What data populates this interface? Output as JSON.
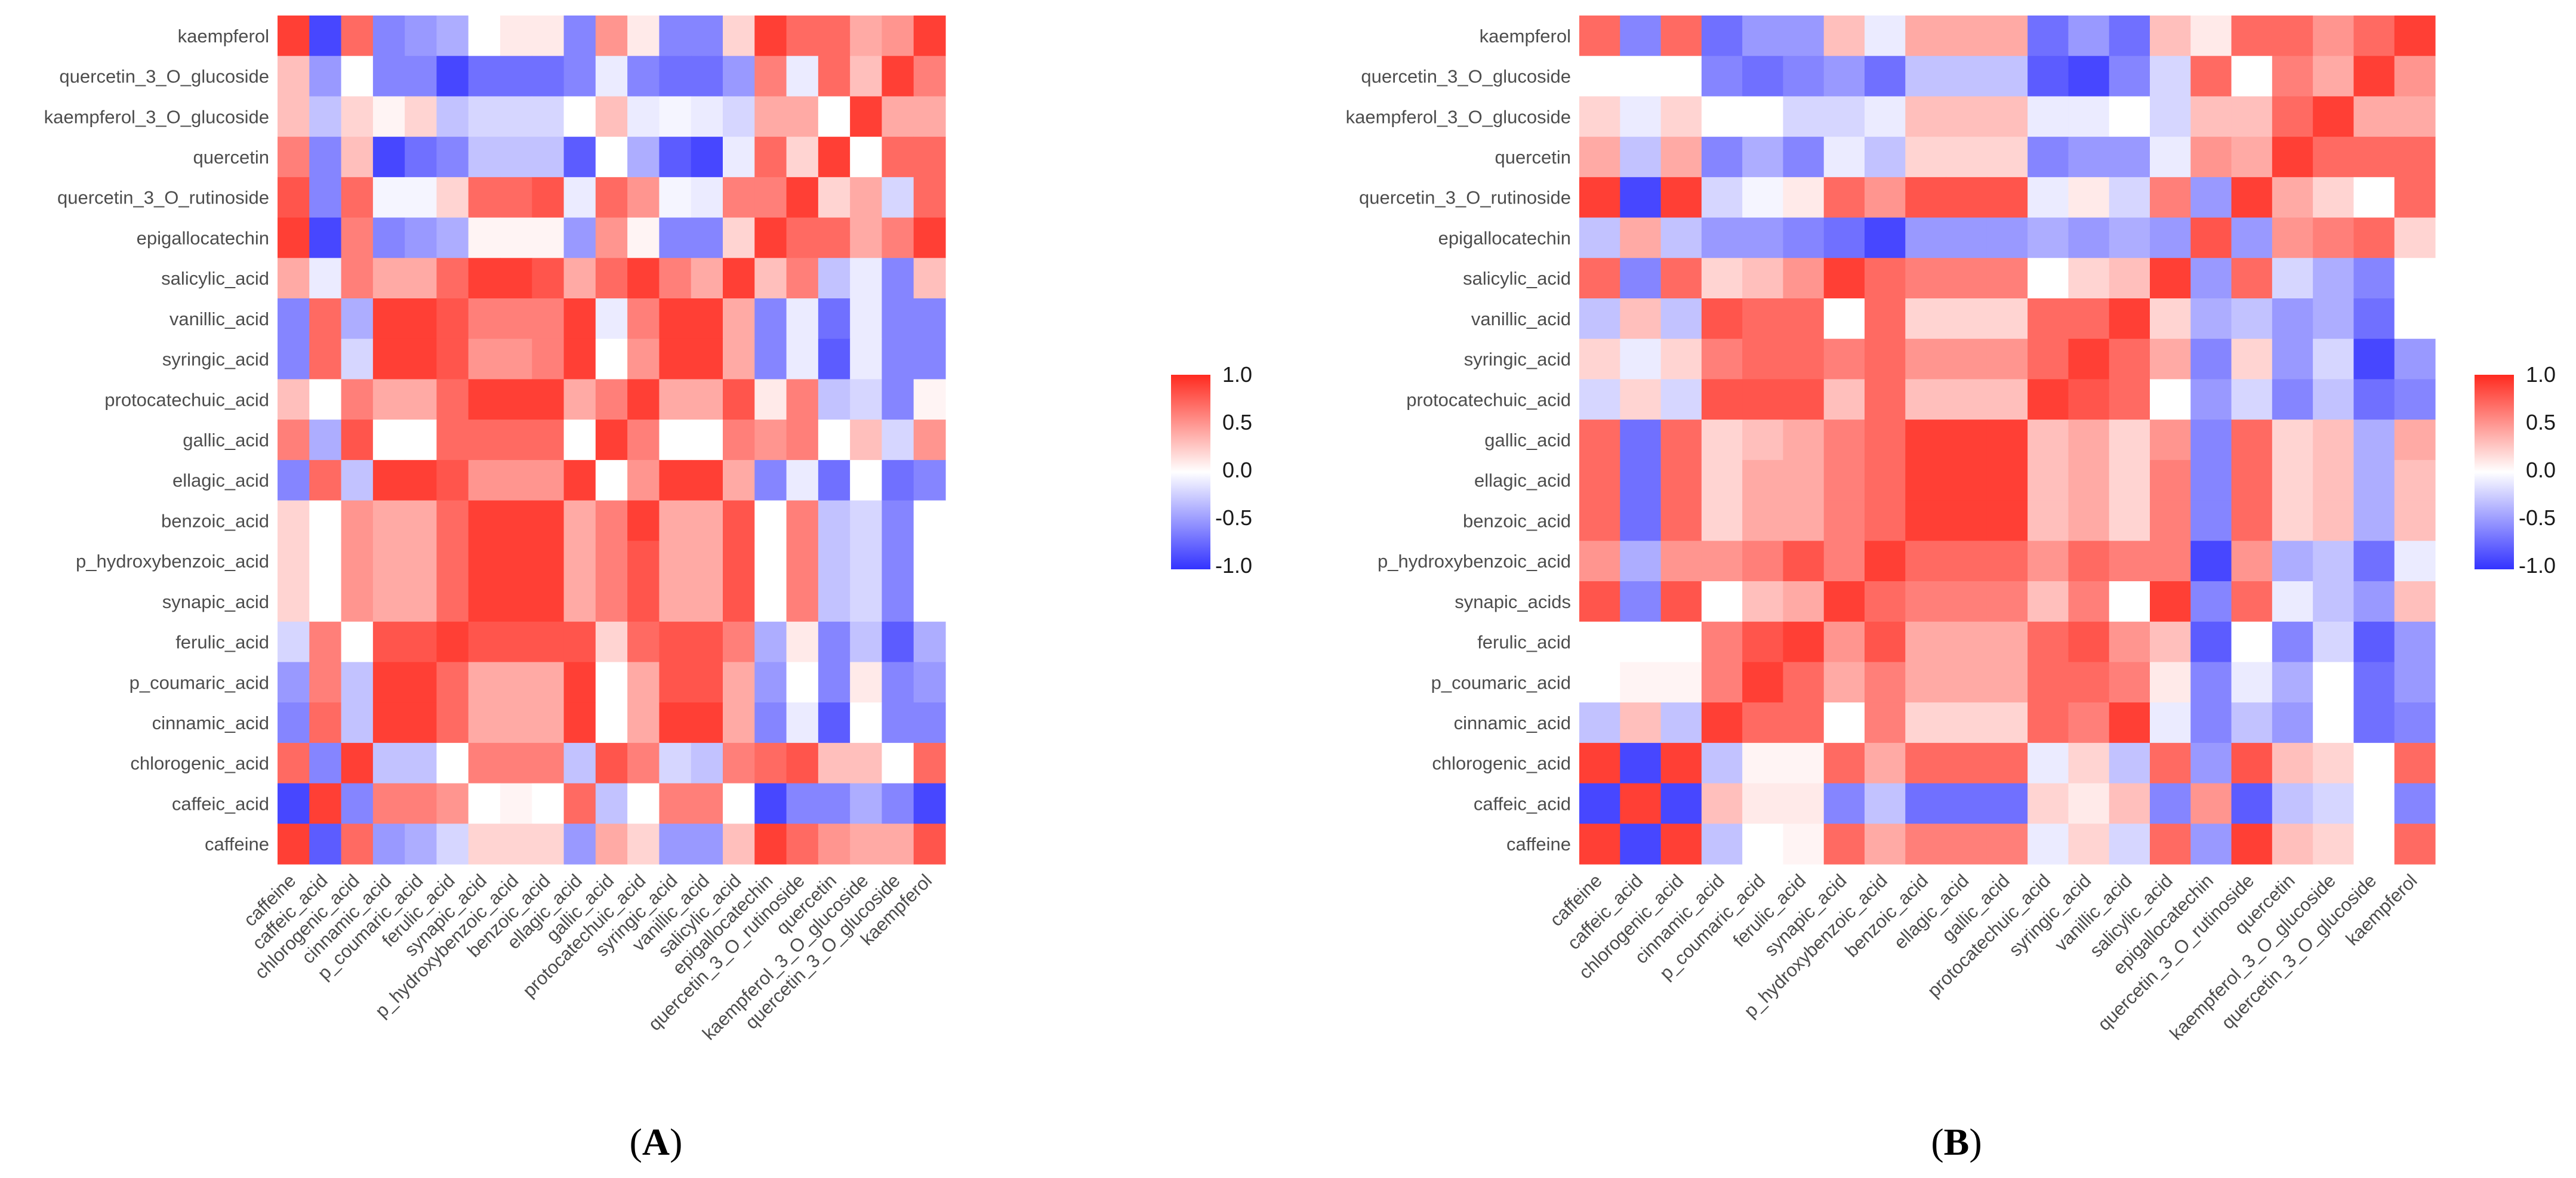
{
  "colors": {
    "low": "#3333ff",
    "mid": "#ffffff",
    "high": "#ff2a1f"
  },
  "chart_data": [
    {
      "type": "heatmap",
      "panel_label": "A",
      "panel_label_open": "(",
      "panel_label_close": ")",
      "title": "",
      "x_labels": [
        "caffeine",
        "caffeic_acid",
        "chlorogenic_acid",
        "cinnamic_acid",
        "p_coumaric_acid",
        "ferulic_acid",
        "synapic_acid",
        "p_hydroxybenzoic_acid",
        "benzoic_acid",
        "ellagic_acid",
        "gallic_acid",
        "protocatechuic_acid",
        "syringic_acid",
        "vanillic_acid",
        "salicylic_acid",
        "epigallocatechin",
        "quercetin_3_O_rutinoside",
        "quercetin",
        "kaempferol_3_O_glucoside",
        "quercetin_3_O_glucoside",
        "kaempferol"
      ],
      "y_labels": [
        "kaempferol",
        "quercetin_3_O_glucoside",
        "kaempferol_3_O_glucoside",
        "quercetin",
        "quercetin_3_O_rutinoside",
        "epigallocatechin",
        "salicylic_acid",
        "vanillic_acid",
        "syringic_acid",
        "protocatechuic_acid",
        "gallic_acid",
        "ellagic_acid",
        "benzoic_acid",
        "p_hydroxybenzoic_acid",
        "synapic_acid",
        "ferulic_acid",
        "p_coumaric_acid",
        "cinnamic_acid",
        "chlorogenic_acid",
        "caffeic_acid",
        "caffeine"
      ],
      "values": [
        [
          0.9,
          -0.9,
          0.7,
          -0.6,
          -0.5,
          -0.4,
          0.0,
          0.1,
          0.1,
          -0.6,
          0.5,
          0.1,
          -0.6,
          -0.6,
          0.2,
          0.9,
          0.7,
          0.7,
          0.4,
          0.5,
          0.9
        ],
        [
          0.3,
          -0.5,
          0.0,
          -0.6,
          -0.6,
          -0.9,
          -0.7,
          -0.7,
          -0.7,
          -0.6,
          -0.1,
          -0.6,
          -0.7,
          -0.7,
          -0.5,
          0.6,
          -0.1,
          0.7,
          0.3,
          0.9,
          0.6
        ],
        [
          0.3,
          -0.3,
          0.2,
          0.05,
          0.2,
          -0.3,
          -0.2,
          -0.2,
          -0.2,
          0.0,
          0.3,
          -0.1,
          -0.05,
          -0.1,
          -0.2,
          0.4,
          0.4,
          0.0,
          0.9,
          0.4,
          0.4
        ],
        [
          0.6,
          -0.6,
          0.3,
          -0.9,
          -0.7,
          -0.6,
          -0.3,
          -0.3,
          -0.3,
          -0.8,
          0.0,
          -0.4,
          -0.8,
          -0.9,
          -0.1,
          0.7,
          0.2,
          0.9,
          0.0,
          0.7,
          0.7
        ],
        [
          0.8,
          -0.6,
          0.7,
          -0.05,
          -0.05,
          0.2,
          0.7,
          0.7,
          0.8,
          -0.1,
          0.7,
          0.5,
          -0.05,
          -0.1,
          0.6,
          0.6,
          0.9,
          0.2,
          0.4,
          -0.2,
          0.7
        ],
        [
          0.9,
          -0.9,
          0.6,
          -0.6,
          -0.5,
          -0.4,
          0.05,
          0.05,
          0.05,
          -0.5,
          0.5,
          0.05,
          -0.6,
          -0.6,
          0.2,
          0.9,
          0.7,
          0.7,
          0.4,
          0.6,
          0.9
        ],
        [
          0.4,
          -0.1,
          0.6,
          0.4,
          0.4,
          0.7,
          0.9,
          0.9,
          0.8,
          0.4,
          0.7,
          0.9,
          0.6,
          0.4,
          0.9,
          0.3,
          0.6,
          -0.3,
          -0.1,
          -0.6,
          0.3
        ],
        [
          -0.6,
          0.7,
          -0.4,
          0.9,
          0.9,
          0.8,
          0.6,
          0.6,
          0.6,
          0.9,
          -0.1,
          0.6,
          0.9,
          0.9,
          0.4,
          -0.6,
          -0.1,
          -0.7,
          -0.1,
          -0.6,
          -0.6
        ],
        [
          -0.6,
          0.7,
          -0.2,
          0.9,
          0.9,
          0.8,
          0.5,
          0.5,
          0.6,
          0.9,
          0.0,
          0.5,
          0.9,
          0.9,
          0.4,
          -0.6,
          -0.1,
          -0.8,
          -0.1,
          -0.6,
          -0.6
        ],
        [
          0.3,
          0.0,
          0.6,
          0.4,
          0.4,
          0.7,
          0.9,
          0.9,
          0.9,
          0.4,
          0.6,
          0.9,
          0.4,
          0.4,
          0.8,
          0.1,
          0.6,
          -0.3,
          -0.2,
          -0.6,
          0.05
        ],
        [
          0.6,
          -0.4,
          0.8,
          0.0,
          0.0,
          0.7,
          0.7,
          0.7,
          0.7,
          0.0,
          0.9,
          0.6,
          0.0,
          0.0,
          0.6,
          0.5,
          0.6,
          0.0,
          0.3,
          -0.2,
          0.5
        ],
        [
          -0.6,
          0.7,
          -0.3,
          0.9,
          0.9,
          0.8,
          0.5,
          0.5,
          0.5,
          0.9,
          0.0,
          0.5,
          0.9,
          0.9,
          0.4,
          -0.6,
          -0.1,
          -0.7,
          0.0,
          -0.7,
          -0.6
        ],
        [
          0.2,
          0.0,
          0.5,
          0.4,
          0.4,
          0.7,
          0.9,
          0.9,
          0.9,
          0.4,
          0.6,
          0.9,
          0.4,
          0.4,
          0.8,
          0.0,
          0.6,
          -0.3,
          -0.2,
          -0.6,
          0.0
        ],
        [
          0.2,
          0.0,
          0.5,
          0.4,
          0.4,
          0.7,
          0.9,
          0.9,
          0.9,
          0.4,
          0.6,
          0.8,
          0.4,
          0.4,
          0.8,
          0.0,
          0.6,
          -0.3,
          -0.2,
          -0.6,
          0.0
        ],
        [
          0.2,
          0.0,
          0.5,
          0.4,
          0.4,
          0.7,
          0.9,
          0.9,
          0.9,
          0.4,
          0.6,
          0.8,
          0.4,
          0.4,
          0.8,
          0.0,
          0.6,
          -0.3,
          -0.2,
          -0.6,
          0.0
        ],
        [
          -0.2,
          0.6,
          0.0,
          0.8,
          0.8,
          0.9,
          0.8,
          0.8,
          0.8,
          0.8,
          0.2,
          0.7,
          0.8,
          0.8,
          0.6,
          -0.4,
          0.1,
          -0.6,
          -0.3,
          -0.8,
          -0.4
        ],
        [
          -0.5,
          0.6,
          -0.3,
          0.9,
          0.9,
          0.7,
          0.4,
          0.4,
          0.4,
          0.9,
          0.0,
          0.4,
          0.8,
          0.8,
          0.4,
          -0.5,
          0.0,
          -0.6,
          0.1,
          -0.6,
          -0.5
        ],
        [
          -0.6,
          0.7,
          -0.3,
          0.9,
          0.9,
          0.7,
          0.4,
          0.4,
          0.4,
          0.9,
          0.0,
          0.4,
          0.9,
          0.9,
          0.4,
          -0.6,
          -0.1,
          -0.8,
          0.0,
          -0.6,
          -0.6
        ],
        [
          0.7,
          -0.6,
          0.9,
          -0.3,
          -0.3,
          0.0,
          0.6,
          0.6,
          0.6,
          -0.3,
          0.8,
          0.6,
          -0.2,
          -0.3,
          0.6,
          0.7,
          0.8,
          0.3,
          0.3,
          0.0,
          0.7
        ],
        [
          -0.9,
          0.9,
          -0.6,
          0.6,
          0.6,
          0.5,
          0.0,
          0.05,
          0.0,
          0.7,
          -0.3,
          0.0,
          0.6,
          0.6,
          0.0,
          -0.9,
          -0.6,
          -0.6,
          -0.4,
          -0.6,
          -0.9
        ],
        [
          0.9,
          -0.8,
          0.7,
          -0.5,
          -0.4,
          -0.2,
          0.2,
          0.2,
          0.2,
          -0.5,
          0.4,
          0.2,
          -0.5,
          -0.5,
          0.3,
          0.9,
          0.7,
          0.5,
          0.4,
          0.4,
          0.8
        ]
      ],
      "legend": {
        "ticks": [
          "1.0",
          "0.5",
          "0.0",
          "-0.5",
          "-1.0"
        ],
        "range": [
          -1,
          1
        ]
      }
    },
    {
      "type": "heatmap",
      "panel_label": "B",
      "panel_label_open": "(",
      "panel_label_close": ")",
      "title": "",
      "x_labels": [
        "caffeine",
        "caffeic_acid",
        "chlorogenic_acid",
        "cinnamic_acid",
        "p_coumaric_acid",
        "ferulic_acid",
        "synapic_acid",
        "p_hydroxybenzoic_acid",
        "benzoic_acid",
        "ellagic_acid",
        "gallic_acid",
        "protocatechuic_acid",
        "syringic_acid",
        "vanillic_acid",
        "salicylic_acid",
        "epigallocatechin",
        "quercetin_3_O_rutinoside",
        "quercetin",
        "kaempferol_3_O_glucoside",
        "quercetin_3_O_glucoside",
        "kaempferol"
      ],
      "y_labels": [
        "kaempferol",
        "quercetin_3_O_glucoside",
        "kaempferol_3_O_glucoside",
        "quercetin",
        "quercetin_3_O_rutinoside",
        "epigallocatechin",
        "salicylic_acid",
        "vanillic_acid",
        "syringic_acid",
        "protocatechuic_acid",
        "gallic_acid",
        "ellagic_acid",
        "benzoic_acid",
        "p_hydroxybenzoic_acid",
        "synapic_acids",
        "ferulic_acid",
        "p_coumaric_acid",
        "cinnamic_acid",
        "chlorogenic_acid",
        "caffeic_acid",
        "caffeine"
      ],
      "values": [
        [
          0.7,
          -0.6,
          0.7,
          -0.7,
          -0.5,
          -0.5,
          0.3,
          -0.1,
          0.4,
          0.4,
          0.4,
          -0.7,
          -0.5,
          -0.7,
          0.3,
          0.1,
          0.7,
          0.7,
          0.5,
          0.7,
          0.9
        ],
        [
          0.0,
          0.0,
          0.0,
          -0.6,
          -0.7,
          -0.6,
          -0.5,
          -0.7,
          -0.3,
          -0.3,
          -0.3,
          -0.8,
          -0.9,
          -0.6,
          -0.2,
          0.7,
          0.0,
          0.6,
          0.4,
          0.9,
          0.5
        ],
        [
          0.2,
          -0.1,
          0.2,
          0.0,
          0.0,
          -0.2,
          -0.2,
          -0.1,
          0.3,
          0.3,
          0.3,
          -0.1,
          -0.1,
          0.0,
          -0.2,
          0.3,
          0.3,
          0.7,
          0.9,
          0.4,
          0.4
        ],
        [
          0.4,
          -0.3,
          0.4,
          -0.6,
          -0.4,
          -0.6,
          -0.1,
          -0.3,
          0.2,
          0.2,
          0.2,
          -0.6,
          -0.5,
          -0.5,
          -0.1,
          0.5,
          0.4,
          0.9,
          0.7,
          0.7,
          0.7
        ],
        [
          0.9,
          -0.9,
          0.9,
          -0.2,
          -0.05,
          0.1,
          0.7,
          0.5,
          0.8,
          0.8,
          0.8,
          -0.1,
          0.1,
          -0.2,
          0.6,
          -0.5,
          0.9,
          0.4,
          0.2,
          0.0,
          0.7
        ],
        [
          -0.3,
          0.4,
          -0.3,
          -0.5,
          -0.5,
          -0.6,
          -0.7,
          -0.9,
          -0.5,
          -0.5,
          -0.5,
          -0.4,
          -0.5,
          -0.4,
          -0.5,
          0.8,
          -0.5,
          0.5,
          0.6,
          0.7,
          0.2
        ],
        [
          0.7,
          -0.6,
          0.7,
          0.2,
          0.3,
          0.5,
          0.9,
          0.7,
          0.6,
          0.6,
          0.6,
          0.0,
          0.2,
          0.3,
          0.9,
          -0.5,
          0.7,
          -0.2,
          -0.4,
          -0.6,
          null
        ],
        [
          -0.3,
          0.3,
          -0.3,
          0.8,
          0.7,
          0.7,
          0.0,
          0.7,
          0.2,
          0.2,
          0.2,
          0.7,
          0.7,
          0.9,
          0.2,
          -0.4,
          -0.3,
          -0.5,
          -0.4,
          -0.7,
          null
        ],
        [
          0.2,
          -0.1,
          0.2,
          0.6,
          0.7,
          0.7,
          0.6,
          0.7,
          0.5,
          0.5,
          0.5,
          0.7,
          0.9,
          0.7,
          0.4,
          -0.6,
          0.2,
          -0.5,
          -0.2,
          -0.9,
          -0.5
        ],
        [
          -0.2,
          0.2,
          -0.2,
          0.8,
          0.8,
          0.8,
          0.3,
          0.7,
          0.3,
          0.3,
          0.3,
          0.9,
          0.8,
          0.7,
          0.0,
          -0.5,
          -0.2,
          -0.6,
          -0.3,
          -0.7,
          -0.6
        ],
        [
          0.7,
          -0.7,
          0.7,
          0.2,
          0.3,
          0.4,
          0.6,
          0.7,
          0.9,
          0.9,
          0.9,
          0.3,
          0.4,
          0.2,
          0.5,
          -0.6,
          0.7,
          0.2,
          0.3,
          -0.4,
          0.4
        ],
        [
          0.7,
          -0.7,
          0.7,
          0.2,
          0.4,
          0.4,
          0.6,
          0.7,
          0.9,
          0.9,
          0.9,
          0.3,
          0.4,
          0.2,
          0.6,
          -0.6,
          0.7,
          0.2,
          0.3,
          -0.4,
          0.3
        ],
        [
          0.7,
          -0.7,
          0.7,
          0.2,
          0.4,
          0.4,
          0.6,
          0.7,
          0.9,
          0.9,
          0.9,
          0.3,
          0.4,
          0.2,
          0.6,
          -0.6,
          0.7,
          0.2,
          0.3,
          -0.4,
          0.3
        ],
        [
          0.5,
          -0.4,
          0.5,
          0.5,
          0.6,
          0.8,
          0.6,
          0.9,
          0.7,
          0.7,
          0.7,
          0.5,
          0.7,
          0.6,
          0.6,
          -0.9,
          0.5,
          -0.4,
          -0.3,
          -0.7,
          -0.1
        ],
        [
          0.8,
          -0.6,
          0.8,
          0.0,
          0.3,
          0.4,
          0.9,
          0.7,
          0.6,
          0.6,
          0.6,
          0.3,
          0.6,
          0.0,
          0.9,
          -0.6,
          0.7,
          -0.1,
          -0.3,
          -0.5,
          0.3
        ],
        [
          0.0,
          0.0,
          0.0,
          0.6,
          0.8,
          0.9,
          0.5,
          0.8,
          0.4,
          0.4,
          0.4,
          0.7,
          0.8,
          0.5,
          0.3,
          -0.8,
          0.0,
          -0.6,
          -0.2,
          -0.8,
          -0.5
        ],
        [
          0.0,
          0.05,
          0.05,
          0.6,
          0.9,
          0.7,
          0.4,
          0.6,
          0.4,
          0.4,
          0.4,
          0.7,
          0.7,
          0.6,
          0.1,
          -0.6,
          -0.1,
          -0.4,
          0.0,
          -0.7,
          -0.5
        ],
        [
          -0.3,
          0.3,
          -0.3,
          0.9,
          0.7,
          0.7,
          0.0,
          0.6,
          0.2,
          0.2,
          0.2,
          0.7,
          0.6,
          0.9,
          -0.1,
          -0.6,
          -0.3,
          -0.5,
          0.0,
          -0.7,
          -0.6
        ],
        [
          0.9,
          -0.9,
          0.9,
          -0.3,
          0.05,
          0.05,
          0.7,
          0.4,
          0.7,
          0.7,
          0.7,
          -0.1,
          0.2,
          -0.3,
          0.7,
          -0.5,
          0.8,
          0.3,
          0.2,
          0.0,
          0.7
        ],
        [
          -0.9,
          0.9,
          -0.9,
          0.3,
          0.1,
          0.1,
          -0.6,
          -0.3,
          -0.7,
          -0.7,
          -0.7,
          0.2,
          0.1,
          0.3,
          -0.6,
          0.5,
          -0.8,
          -0.3,
          -0.2,
          0.0,
          -0.6
        ],
        [
          0.9,
          -0.9,
          0.9,
          -0.3,
          0.0,
          0.05,
          0.7,
          0.4,
          0.6,
          0.6,
          0.6,
          -0.1,
          0.2,
          -0.2,
          0.7,
          -0.5,
          0.9,
          0.3,
          0.2,
          0.0,
          0.7
        ]
      ],
      "legend": {
        "ticks": [
          "1.0",
          "0.5",
          "0.0",
          "-0.5",
          "-1.0"
        ],
        "range": [
          -1,
          1
        ]
      }
    }
  ]
}
